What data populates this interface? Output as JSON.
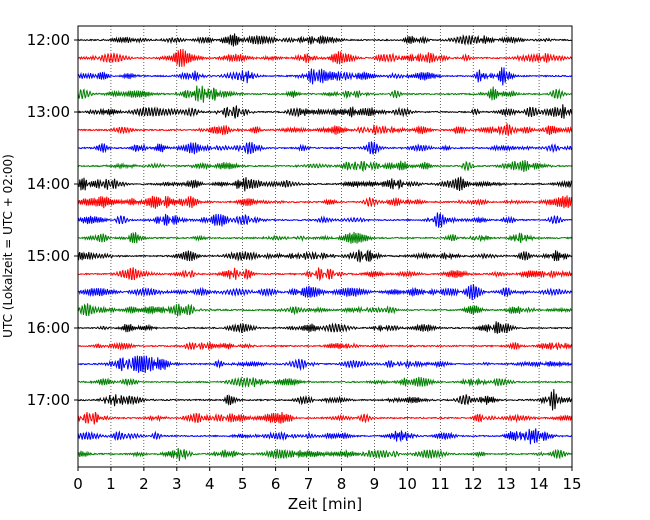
{
  "chart_data": {
    "type": "line",
    "title": "",
    "xlabel": "Zeit  [min]",
    "ylabel": "UTC (Lokalzeit = UTC + 02:00)",
    "xlim": [
      0,
      15
    ],
    "x_ticks": [
      "0",
      "1",
      "2",
      "3",
      "4",
      "5",
      "6",
      "7",
      "8",
      "9",
      "10",
      "11",
      "12",
      "13",
      "14",
      "15"
    ],
    "y_ticks": [
      "12:00",
      "13:00",
      "14:00",
      "15:00",
      "16:00",
      "17:00"
    ],
    "x_grid": true,
    "trace_interval_minutes": 15,
    "trace_count": 24,
    "trace_colors": [
      "#000000",
      "#ff0000",
      "#0000ff",
      "#008000"
    ]
  }
}
